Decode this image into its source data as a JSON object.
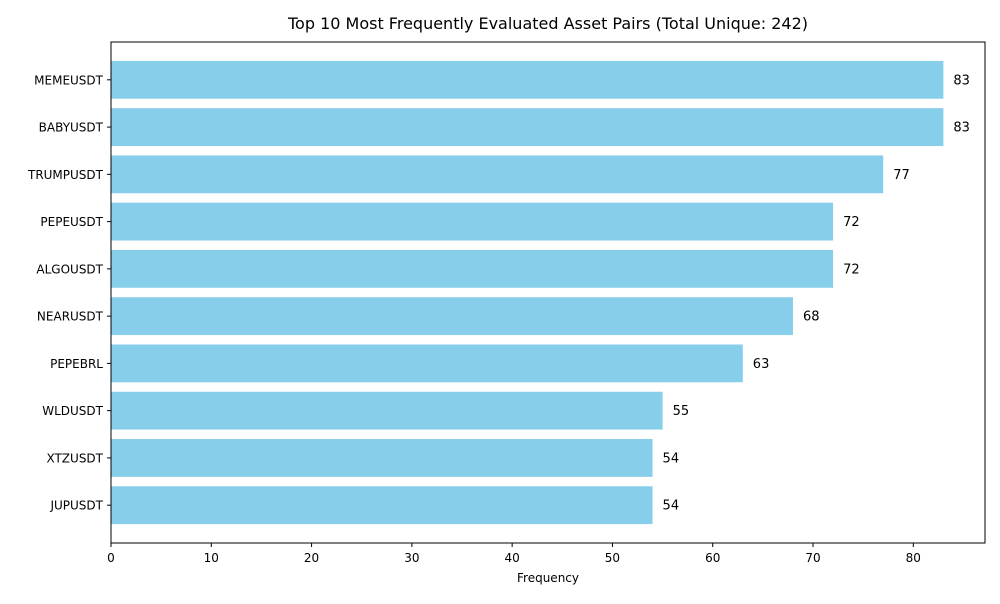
{
  "chart_data": {
    "type": "bar",
    "orientation": "horizontal",
    "title": "Top 10 Most Frequently Evaluated Asset Pairs (Total Unique: 242)",
    "xlabel": "Frequency",
    "ylabel": "",
    "categories": [
      "MEMEUSDT",
      "BABYUSDT",
      "TRUMPUSDT",
      "PEPEUSDT",
      "ALGOUSDT",
      "NEARUSDT",
      "PEPEBRL",
      "WLDUSDT",
      "XTZUSDT",
      "JUPUSDT"
    ],
    "values": [
      83,
      83,
      77,
      72,
      72,
      68,
      63,
      55,
      54,
      54
    ],
    "data_labels": [
      "83",
      "83",
      "77",
      "72",
      "72",
      "68",
      "63",
      "55",
      "54",
      "54"
    ],
    "xlim": [
      0,
      87.15
    ],
    "xticks": [
      0,
      10,
      20,
      30,
      40,
      50,
      60,
      70,
      80
    ],
    "xtick_labels": [
      "0",
      "10",
      "20",
      "30",
      "40",
      "50",
      "60",
      "70",
      "80"
    ],
    "bar_color": "#87CEEB",
    "grid": false,
    "legend": "none"
  }
}
